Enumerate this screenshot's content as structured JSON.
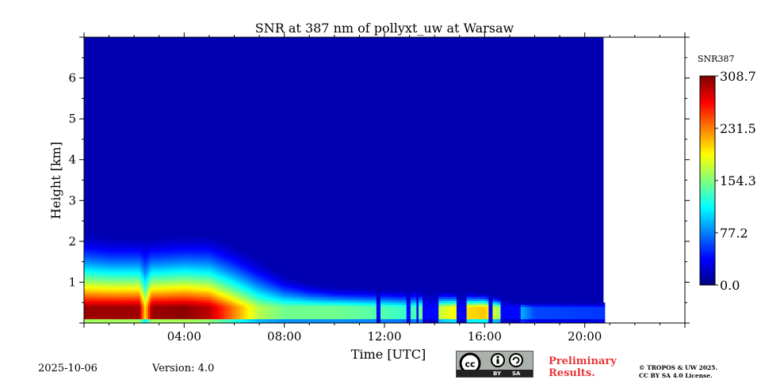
{
  "chart_data": {
    "type": "heatmap",
    "title": "SNR at 387 nm of pollyxt_uw at Warsaw",
    "xlabel": "Time [UTC]",
    "ylabel": "Height [km]",
    "xlim_hours": [
      0,
      24
    ],
    "ylim_km": [
      0,
      7
    ],
    "data_end_hour": 20.75,
    "x_ticks": [
      {
        "hour": 4,
        "label": "04:00"
      },
      {
        "hour": 8,
        "label": "08:00"
      },
      {
        "hour": 12,
        "label": "12:00"
      },
      {
        "hour": 16,
        "label": "16:00"
      },
      {
        "hour": 20,
        "label": "20:00"
      }
    ],
    "y_ticks": [
      {
        "value": 1,
        "label": "1"
      },
      {
        "value": 2,
        "label": "2"
      },
      {
        "value": 3,
        "label": "3"
      },
      {
        "value": 4,
        "label": "4"
      },
      {
        "value": 5,
        "label": "5"
      },
      {
        "value": 6,
        "label": "6"
      }
    ],
    "colorbar": {
      "label": "SNR387",
      "range": [
        0.0,
        308.7
      ],
      "ticks": [
        {
          "value": 308.7,
          "label": "308.7"
        },
        {
          "value": 231.5,
          "label": "231.5"
        },
        {
          "value": 154.3,
          "label": "154.3"
        },
        {
          "value": 77.2,
          "label": "77.2"
        },
        {
          "value": 0.0,
          "label": "0.0"
        }
      ]
    },
    "background_snr": 15,
    "boundary_layer_top_km": [
      [
        0,
        2.15
      ],
      [
        1,
        2.05
      ],
      [
        2,
        2.05
      ],
      [
        3,
        2.05
      ],
      [
        4,
        2.1
      ],
      [
        5,
        2.1
      ],
      [
        6,
        1.85
      ],
      [
        7,
        1.5
      ],
      [
        8,
        1.1
      ],
      [
        9,
        0.9
      ],
      [
        10,
        0.8
      ],
      [
        12,
        0.75
      ],
      [
        14,
        0.7
      ],
      [
        16,
        0.65
      ],
      [
        17.5,
        0.4
      ],
      [
        20.75,
        0.3
      ]
    ],
    "peak_snr_profile": [
      [
        0,
        300
      ],
      [
        2.2,
        300
      ],
      [
        2.45,
        200
      ],
      [
        2.7,
        300
      ],
      [
        4,
        305
      ],
      [
        5,
        290
      ],
      [
        6,
        230
      ],
      [
        7,
        170
      ],
      [
        8,
        150
      ],
      [
        10,
        150
      ],
      [
        12,
        140
      ],
      [
        13,
        130
      ],
      [
        14,
        170
      ],
      [
        15,
        200
      ],
      [
        16,
        210
      ],
      [
        17.5,
        90
      ],
      [
        18,
        60
      ],
      [
        20.75,
        55
      ]
    ],
    "peak_height_km": 0.3,
    "cloud_gaps_hour": [
      [
        11.7,
        11.85
      ],
      [
        12.9,
        13.05
      ],
      [
        13.25,
        13.35
      ],
      [
        13.55,
        14.2
      ],
      [
        14.9,
        15.3
      ],
      [
        16.2,
        16.35
      ],
      [
        16.6,
        17.4
      ]
    ]
  },
  "footer": {
    "date": "2025-10-06",
    "version": "Version: 4.0",
    "preliminary_line1": "Preliminary",
    "preliminary_line2": "Results.",
    "license_line1": "© TROPOS & UW 2025.",
    "license_line2": "CC BY SA 4.0 License.",
    "cc_by": "BY",
    "cc_sa": "SA"
  }
}
